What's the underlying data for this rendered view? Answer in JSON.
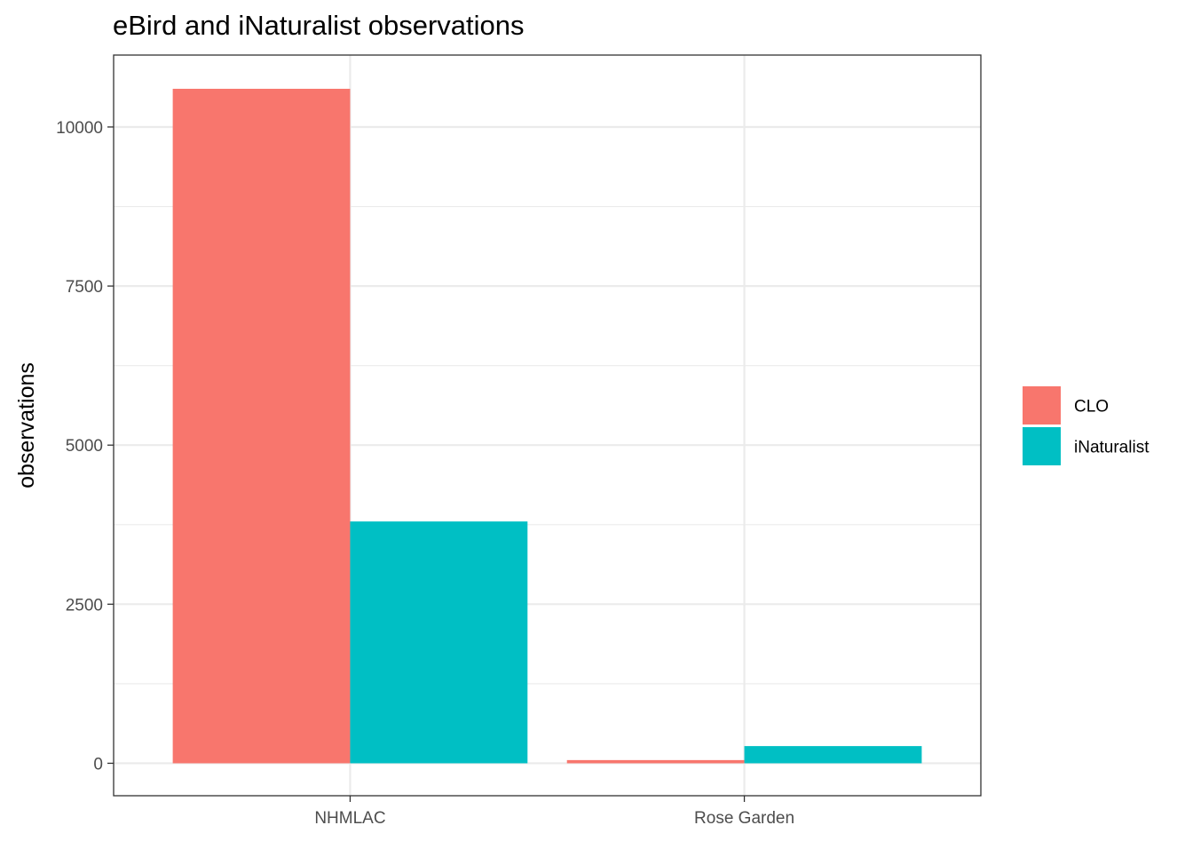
{
  "chart_data": {
    "type": "bar",
    "title": "eBird and iNaturalist observations",
    "xlabel": "",
    "ylabel": "observations",
    "categories": [
      "NHMLAC",
      "Rose Garden"
    ],
    "series": [
      {
        "name": "CLO",
        "color": "#F8766D",
        "values": [
          10600,
          50
        ]
      },
      {
        "name": "iNaturalist",
        "color": "#00BFC4",
        "values": [
          3800,
          270
        ]
      }
    ],
    "ylim": [
      -510,
      11130
    ],
    "yticks": [
      0,
      2500,
      5000,
      7500,
      10000
    ],
    "ytick_labels": [
      "0",
      "2500",
      "5000",
      "7500",
      "10000"
    ],
    "grid": true,
    "legend": {
      "position": "right",
      "entries": [
        "CLO",
        "iNaturalist"
      ]
    }
  }
}
